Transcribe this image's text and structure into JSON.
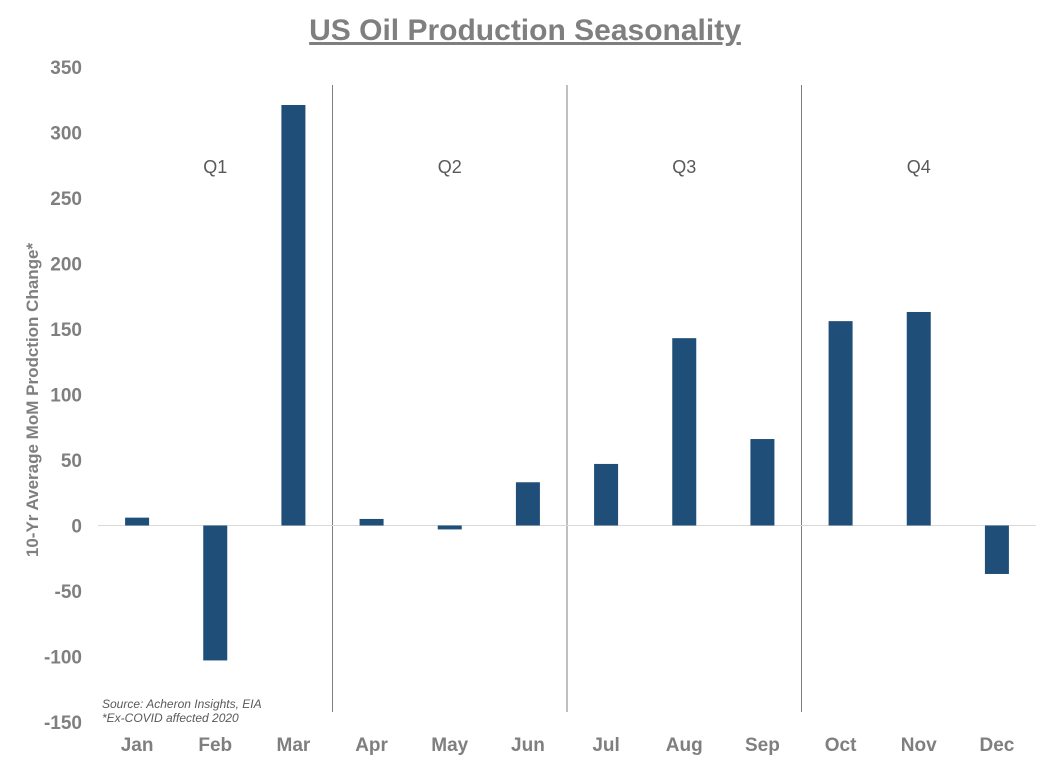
{
  "chart_data": {
    "type": "bar",
    "title": "US Oil Production Seasonality",
    "ylabel": "10-Yr Average MoM Prodction Change*",
    "xlabel": "",
    "categories": [
      "Jan",
      "Feb",
      "Mar",
      "Apr",
      "May",
      "Jun",
      "Jul",
      "Aug",
      "Sep",
      "Oct",
      "Nov",
      "Dec"
    ],
    "values": [
      6,
      -103,
      321,
      5,
      -3,
      33,
      47,
      143,
      66,
      156,
      163,
      -37
    ],
    "ylim": [
      -150,
      350
    ],
    "yticks": [
      350,
      300,
      250,
      200,
      150,
      100,
      50,
      0,
      -50,
      -100,
      -150
    ],
    "quarters": [
      "Q1",
      "Q2",
      "Q3",
      "Q4"
    ],
    "notes": [
      "Source: Acheron Insights, EIA",
      "*Ex-COVID affected 2020"
    ],
    "grid": false,
    "bar_color": "#1f4e79",
    "divider_color": "#7f7f7f"
  }
}
